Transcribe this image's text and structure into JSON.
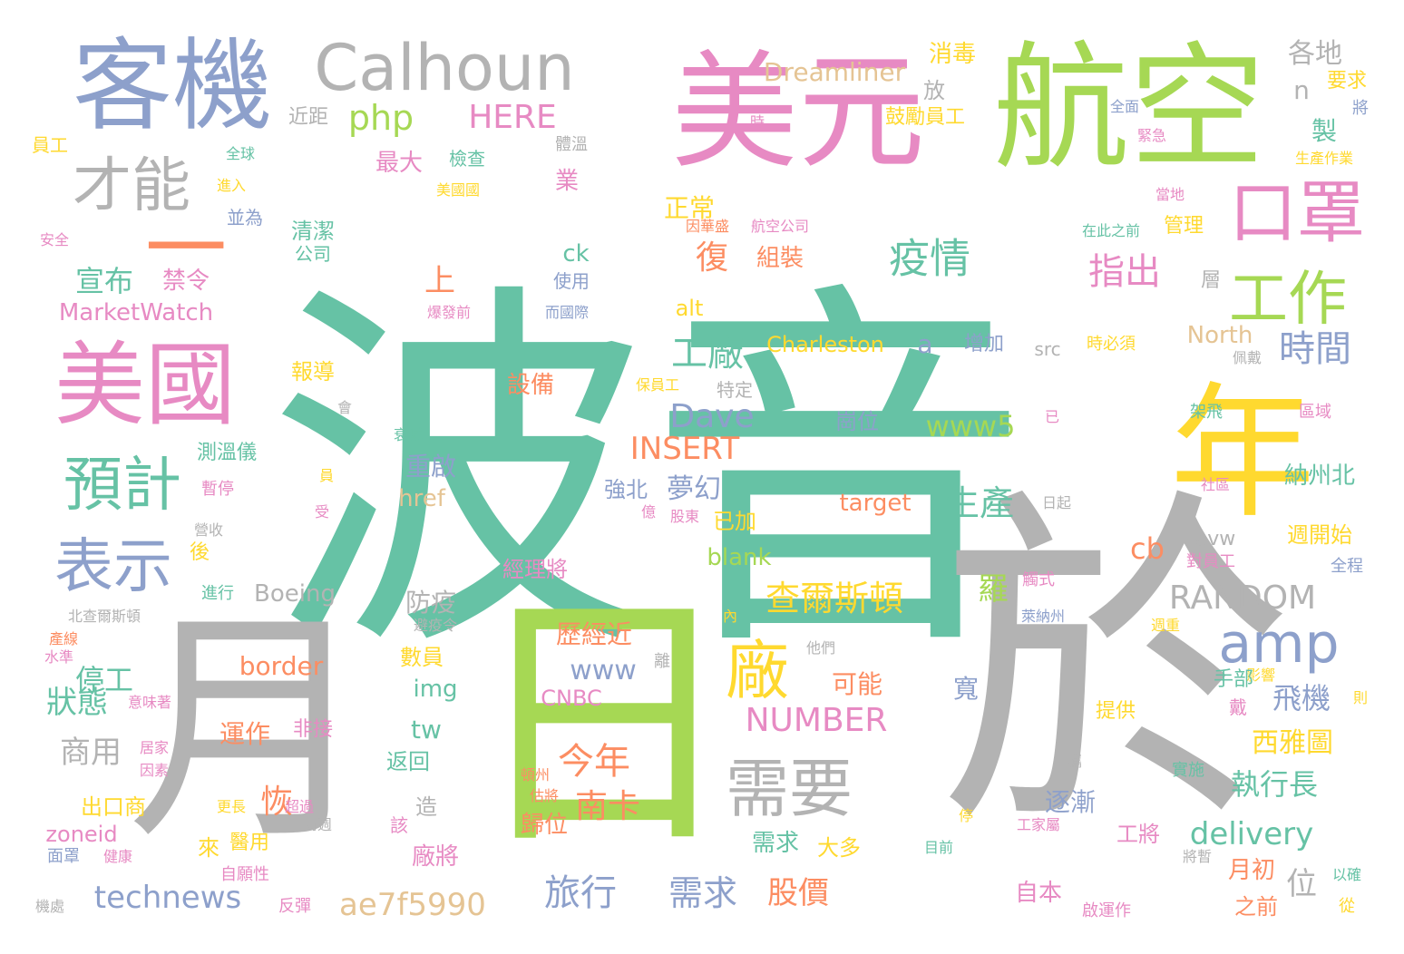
{
  "palette": {
    "teal": "#66c2a5",
    "orange": "#fc8d62",
    "blue": "#8da0cb",
    "pink": "#e78ac3",
    "green": "#a6d854",
    "yellow": "#ffd92f",
    "tan": "#e5c494",
    "gray": "#b3b3b3"
  },
  "words": [
    {
      "text": "波音",
      "color": "teal"
    },
    {
      "text": "於",
      "color": "gray"
    },
    {
      "text": "日",
      "color": "green"
    },
    {
      "text": "月",
      "color": "gray"
    },
    {
      "text": "航空",
      "color": "green"
    },
    {
      "text": "美元",
      "color": "pink"
    },
    {
      "text": "年",
      "color": "yellow"
    },
    {
      "text": "客機",
      "color": "blue"
    },
    {
      "text": "美國",
      "color": "pink"
    },
    {
      "text": "一",
      "color": "orange"
    },
    {
      "text": "Calhoun",
      "color": "gray"
    },
    {
      "text": "口罩",
      "color": "pink"
    },
    {
      "text": "才能",
      "color": "gray"
    },
    {
      "text": "工作",
      "color": "green"
    },
    {
      "text": "預計",
      "color": "teal"
    },
    {
      "text": "表示",
      "color": "blue"
    },
    {
      "text": "需要",
      "color": "gray"
    },
    {
      "text": "amp",
      "color": "blue"
    },
    {
      "text": "廠",
      "color": "yellow"
    },
    {
      "text": "疫情",
      "color": "teal"
    },
    {
      "text": "指出",
      "color": "pink"
    },
    {
      "text": "時間",
      "color": "blue"
    },
    {
      "text": "工廠",
      "color": "teal"
    },
    {
      "text": "php",
      "color": "green"
    },
    {
      "text": "HERE",
      "color": "pink"
    },
    {
      "text": "Dreamliner",
      "color": "tan"
    },
    {
      "text": "消毒",
      "color": "yellow"
    },
    {
      "text": "各地",
      "color": "gray"
    },
    {
      "text": "要求",
      "color": "yellow"
    },
    {
      "text": "鼓勵員工",
      "color": "yellow"
    },
    {
      "text": "放",
      "color": "gray"
    },
    {
      "text": "n",
      "color": "gray"
    },
    {
      "text": "製",
      "color": "teal"
    },
    {
      "text": "將",
      "color": "blue"
    },
    {
      "text": "近距",
      "color": "gray"
    },
    {
      "text": "時",
      "color": "pink"
    },
    {
      "text": "全面",
      "color": "blue"
    },
    {
      "text": "緊急",
      "color": "pink"
    },
    {
      "text": "生產作業",
      "color": "yellow"
    },
    {
      "text": "員工",
      "color": "yellow"
    },
    {
      "text": "全球",
      "color": "teal"
    },
    {
      "text": "最大",
      "color": "pink"
    },
    {
      "text": "檢查",
      "color": "teal"
    },
    {
      "text": "體溫",
      "color": "gray"
    },
    {
      "text": "業",
      "color": "pink"
    },
    {
      "text": "進入",
      "color": "yellow"
    },
    {
      "text": "美國國",
      "color": "yellow"
    },
    {
      "text": "當地",
      "color": "pink"
    },
    {
      "text": "並為",
      "color": "blue"
    },
    {
      "text": "正常",
      "color": "yellow"
    },
    {
      "text": "因華盛",
      "color": "orange"
    },
    {
      "text": "航空公司",
      "color": "pink"
    },
    {
      "text": "在此之前",
      "color": "teal"
    },
    {
      "text": "管理",
      "color": "yellow"
    },
    {
      "text": "安全",
      "color": "pink"
    },
    {
      "text": "清潔",
      "color": "teal"
    },
    {
      "text": "公司",
      "color": "teal"
    },
    {
      "text": "復",
      "color": "orange"
    },
    {
      "text": "組裝",
      "color": "orange"
    },
    {
      "text": "宣布",
      "color": "teal"
    },
    {
      "text": "禁令",
      "color": "pink"
    },
    {
      "text": "上",
      "color": "orange"
    },
    {
      "text": "ck",
      "color": "teal"
    },
    {
      "text": "使用",
      "color": "blue"
    },
    {
      "text": "層",
      "color": "gray"
    },
    {
      "text": "MarketWatch",
      "color": "pink"
    },
    {
      "text": "爆發前",
      "color": "pink"
    },
    {
      "text": "而國際",
      "color": "blue"
    },
    {
      "text": "alt",
      "color": "yellow"
    },
    {
      "text": "North",
      "color": "tan"
    },
    {
      "text": "a",
      "color": "blue"
    },
    {
      "text": "增加",
      "color": "blue"
    },
    {
      "text": "Charleston",
      "color": "yellow"
    },
    {
      "text": "src",
      "color": "gray"
    },
    {
      "text": "時必須",
      "color": "yellow"
    },
    {
      "text": "佩戴",
      "color": "gray"
    },
    {
      "text": "報導",
      "color": "yellow"
    },
    {
      "text": "設備",
      "color": "orange"
    },
    {
      "text": "會",
      "color": "gray"
    },
    {
      "text": "保員工",
      "color": "yellow"
    },
    {
      "text": "特定",
      "color": "gray"
    },
    {
      "text": "Dave",
      "color": "blue"
    },
    {
      "text": "崗位",
      "color": "blue"
    },
    {
      "text": "www5",
      "color": "green"
    },
    {
      "text": "已",
      "color": "pink"
    },
    {
      "text": "區域",
      "color": "pink"
    },
    {
      "text": "架飛",
      "color": "teal"
    },
    {
      "text": "測溫儀",
      "color": "teal"
    },
    {
      "text": "衰減",
      "color": "teal"
    },
    {
      "text": "INSERT",
      "color": "orange"
    },
    {
      "text": "重啟",
      "color": "blue"
    },
    {
      "text": "員",
      "color": "yellow"
    },
    {
      "text": "夢幻",
      "color": "blue"
    },
    {
      "text": "強北",
      "color": "blue"
    },
    {
      "text": "社區",
      "color": "pink"
    },
    {
      "text": "納州北",
      "color": "teal"
    },
    {
      "text": "暫停",
      "color": "pink"
    },
    {
      "text": "href",
      "color": "tan"
    },
    {
      "text": "生產",
      "color": "teal"
    },
    {
      "text": "target",
      "color": "orange"
    },
    {
      "text": "日起",
      "color": "gray"
    },
    {
      "text": "已加",
      "color": "yellow"
    },
    {
      "text": "受",
      "color": "pink"
    },
    {
      "text": "億",
      "color": "pink"
    },
    {
      "text": "股東",
      "color": "pink"
    },
    {
      "text": "營收",
      "color": "gray"
    },
    {
      "text": "週開始",
      "color": "yellow"
    },
    {
      "text": "後",
      "color": "yellow"
    },
    {
      "text": "cb",
      "color": "orange"
    },
    {
      "text": "blank",
      "color": "green"
    },
    {
      "text": "avw",
      "color": "gray"
    },
    {
      "text": "對員工",
      "color": "pink"
    },
    {
      "text": "全程",
      "color": "blue"
    },
    {
      "text": "經理將",
      "color": "pink"
    },
    {
      "text": "觸式",
      "color": "pink"
    },
    {
      "text": "進行",
      "color": "teal"
    },
    {
      "text": "Boeing",
      "color": "gray"
    },
    {
      "text": "查爾斯頓",
      "color": "yellow"
    },
    {
      "text": "羅",
      "color": "green"
    },
    {
      "text": "RANDOM",
      "color": "gray"
    },
    {
      "text": "防疫",
      "color": "gray"
    },
    {
      "text": "北查爾斯頓",
      "color": "gray"
    },
    {
      "text": "避疫令",
      "color": "gray"
    },
    {
      "text": "內",
      "color": "yellow"
    },
    {
      "text": "萊納州",
      "color": "blue"
    },
    {
      "text": "產線",
      "color": "orange"
    },
    {
      "text": "歷經近",
      "color": "orange"
    },
    {
      "text": "他們",
      "color": "gray"
    },
    {
      "text": "週重",
      "color": "yellow"
    },
    {
      "text": "水準",
      "color": "pink"
    },
    {
      "text": "border",
      "color": "orange"
    },
    {
      "text": "數員",
      "color": "yellow"
    },
    {
      "text": "離",
      "color": "gray"
    },
    {
      "text": "停工",
      "color": "teal"
    },
    {
      "text": "www",
      "color": "blue"
    },
    {
      "text": "可能",
      "color": "orange"
    },
    {
      "text": "飛機",
      "color": "blue"
    },
    {
      "text": "影響",
      "color": "yellow"
    },
    {
      "text": "手部",
      "color": "teal"
    },
    {
      "text": "狀態",
      "color": "teal"
    },
    {
      "text": "意味著",
      "color": "pink"
    },
    {
      "text": "img",
      "color": "teal"
    },
    {
      "text": "CNBC",
      "color": "pink"
    },
    {
      "text": "寬",
      "color": "blue"
    },
    {
      "text": "戴",
      "color": "pink"
    },
    {
      "text": "則",
      "color": "yellow"
    },
    {
      "text": "NUMBER",
      "color": "pink"
    },
    {
      "text": "提供",
      "color": "yellow"
    },
    {
      "text": "商用",
      "color": "gray"
    },
    {
      "text": "運作",
      "color": "orange"
    },
    {
      "text": "非接",
      "color": "pink"
    },
    {
      "text": "tw",
      "color": "teal"
    },
    {
      "text": "西雅圖",
      "color": "yellow"
    },
    {
      "text": "居家",
      "color": "pink"
    },
    {
      "text": "返回",
      "color": "teal"
    },
    {
      "text": "今年",
      "color": "orange"
    },
    {
      "text": "攜",
      "color": "gray"
    },
    {
      "text": "因素",
      "color": "pink"
    },
    {
      "text": "頓州",
      "color": "orange"
    },
    {
      "text": "實施",
      "color": "teal"
    },
    {
      "text": "執行長",
      "color": "teal"
    },
    {
      "text": "恢",
      "color": "orange"
    },
    {
      "text": "估將",
      "color": "orange"
    },
    {
      "text": "南卡",
      "color": "orange"
    },
    {
      "text": "出口商",
      "color": "yellow"
    },
    {
      "text": "更長",
      "color": "yellow"
    },
    {
      "text": "超過",
      "color": "pink"
    },
    {
      "text": "造",
      "color": "gray"
    },
    {
      "text": "逐漸",
      "color": "blue"
    },
    {
      "text": "兩週",
      "color": "gray"
    },
    {
      "text": "停",
      "color": "yellow"
    },
    {
      "text": "zoneid",
      "color": "pink"
    },
    {
      "text": "該",
      "color": "pink"
    },
    {
      "text": "歸位",
      "color": "orange"
    },
    {
      "text": "工將",
      "color": "pink"
    },
    {
      "text": "工家屬",
      "color": "pink"
    },
    {
      "text": "delivery",
      "color": "teal"
    },
    {
      "text": "面罩",
      "color": "blue"
    },
    {
      "text": "健康",
      "color": "pink"
    },
    {
      "text": "醫用",
      "color": "yellow"
    },
    {
      "text": "來",
      "color": "yellow"
    },
    {
      "text": "需求",
      "color": "teal"
    },
    {
      "text": "大多",
      "color": "yellow"
    },
    {
      "text": "廠將",
      "color": "pink"
    },
    {
      "text": "目前",
      "color": "teal"
    },
    {
      "text": "將暫",
      "color": "gray"
    },
    {
      "text": "以確",
      "color": "teal"
    },
    {
      "text": "自願性",
      "color": "pink"
    },
    {
      "text": "月初",
      "color": "orange"
    },
    {
      "text": "technews",
      "color": "blue"
    },
    {
      "text": "位",
      "color": "gray"
    },
    {
      "text": "自本",
      "color": "pink"
    },
    {
      "text": "機處",
      "color": "gray"
    },
    {
      "text": "反彈",
      "color": "pink"
    },
    {
      "text": "ae7f5990",
      "color": "tan"
    },
    {
      "text": "旅行",
      "color": "blue"
    },
    {
      "text": "需求",
      "color": "blue"
    },
    {
      "text": "股價",
      "color": "orange"
    },
    {
      "text": "之前",
      "color": "orange"
    },
    {
      "text": "啟運作",
      "color": "pink"
    },
    {
      "text": "從",
      "color": "yellow"
    }
  ]
}
